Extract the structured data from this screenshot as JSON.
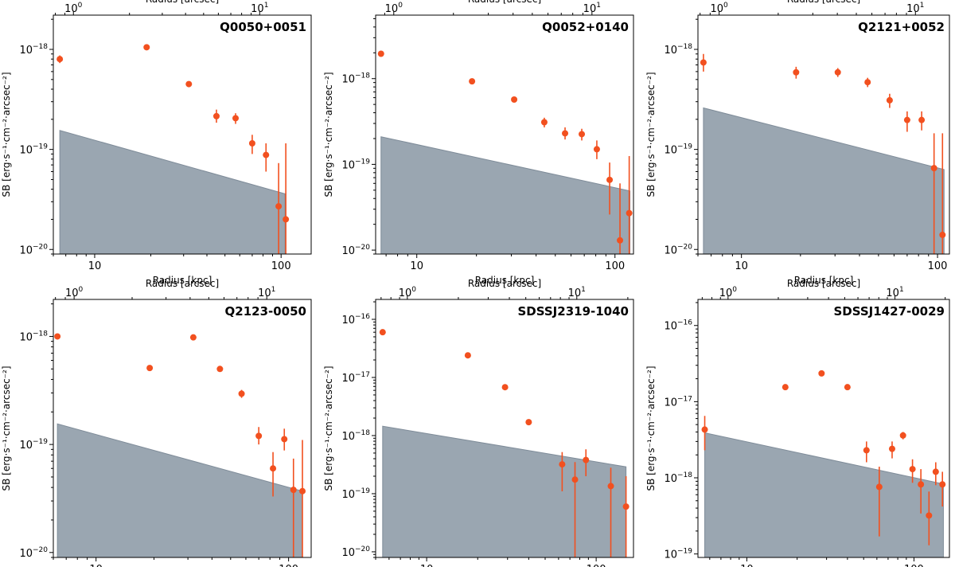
{
  "chart_data": [
    {
      "type": "scatter",
      "title": "Q0050+0051",
      "xlabel": "Radius [kpc]",
      "x2label": "Radius [arcsec]",
      "ylabel": "SB [erg·s⁻¹·cm⁻²·arcsec⁻²]",
      "xscale": "log",
      "yscale": "log",
      "xlim": [
        6,
        145
      ],
      "ylim": [
        9e-21,
        2.2e-18
      ],
      "x2lim": [
        0.78,
        18.9
      ],
      "xticks": [
        {
          "v": 10,
          "label": "10"
        },
        {
          "v": 100,
          "label": "100"
        }
      ],
      "x2ticks": [
        {
          "v": 1,
          "base": "10",
          "exp": "0"
        },
        {
          "v": 10,
          "base": "10",
          "exp": "1"
        }
      ],
      "yticks": [
        {
          "v": 1e-20,
          "base": "10",
          "exp": "−20"
        },
        {
          "v": 1e-19,
          "base": "10",
          "exp": "−19"
        },
        {
          "v": 1e-18,
          "base": "10",
          "exp": "−18"
        }
      ],
      "marker_color": "#f2501f",
      "band_color": "#9aa6b1",
      "band": {
        "x": [
          6.5,
          105
        ],
        "y_top": [
          1.55e-19,
          3.6e-20
        ]
      },
      "points": [
        {
          "x": 6.5,
          "y": 8e-19,
          "lo": 7.3e-19,
          "hi": 8.7e-19
        },
        {
          "x": 19,
          "y": 1.05e-18,
          "lo": 1e-18,
          "hi": 1.1e-18
        },
        {
          "x": 32,
          "y": 4.5e-19,
          "lo": 4.3e-19,
          "hi": 4.7e-19
        },
        {
          "x": 45,
          "y": 2.15e-19,
          "lo": 1.85e-19,
          "hi": 2.5e-19
        },
        {
          "x": 57,
          "y": 2.05e-19,
          "lo": 1.8e-19,
          "hi": 2.3e-19
        },
        {
          "x": 70,
          "y": 1.15e-19,
          "lo": 9e-20,
          "hi": 1.4e-19
        },
        {
          "x": 83,
          "y": 8.8e-20,
          "lo": 6e-20,
          "hi": 1.15e-19
        },
        {
          "x": 97,
          "y": 2.7e-20,
          "lo": 9e-21,
          "hi": 7.3e-20
        },
        {
          "x": 106,
          "y": 2e-20,
          "lo": 9e-21,
          "hi": 1.15e-19
        }
      ]
    },
    {
      "type": "scatter",
      "title": "Q0052+0140",
      "xlabel": "Radius [kpc]",
      "x2label": "Radius [arcsec]",
      "ylabel": "SB [erg·s⁻¹·cm⁻²·arcsec⁻²]",
      "xscale": "log",
      "yscale": "log",
      "xlim": [
        6.2,
        124
      ],
      "ylim": [
        9e-21,
        5.5e-18
      ],
      "x2lim": [
        0.81,
        16.2
      ],
      "xticks": [
        {
          "v": 10,
          "label": "10"
        },
        {
          "v": 100,
          "label": "100"
        }
      ],
      "x2ticks": [
        {
          "v": 1,
          "base": "10",
          "exp": "0"
        },
        {
          "v": 10,
          "base": "10",
          "exp": "1"
        }
      ],
      "yticks": [
        {
          "v": 1e-20,
          "base": "10",
          "exp": "−20"
        },
        {
          "v": 1e-19,
          "base": "10",
          "exp": "−19"
        },
        {
          "v": 1e-18,
          "base": "10",
          "exp": "−18"
        }
      ],
      "marker_color": "#f2501f",
      "band_color": "#9aa6b1",
      "band": {
        "x": [
          6.6,
          119
        ],
        "y_top": [
          2.1e-19,
          4.9e-20
        ]
      },
      "points": [
        {
          "x": 6.6,
          "y": 1.95e-18,
          "lo": 1.85e-18,
          "hi": 2.05e-18
        },
        {
          "x": 19,
          "y": 9.3e-19,
          "lo": 8.9e-19,
          "hi": 9.7e-19
        },
        {
          "x": 31,
          "y": 5.7e-19,
          "lo": 5.4e-19,
          "hi": 6e-19
        },
        {
          "x": 44,
          "y": 3.1e-19,
          "lo": 2.7e-19,
          "hi": 3.5e-19
        },
        {
          "x": 56,
          "y": 2.3e-19,
          "lo": 1.95e-19,
          "hi": 2.7e-19
        },
        {
          "x": 68,
          "y": 2.25e-19,
          "lo": 1.9e-19,
          "hi": 2.6e-19
        },
        {
          "x": 81,
          "y": 1.5e-19,
          "lo": 1.15e-19,
          "hi": 1.9e-19
        },
        {
          "x": 94,
          "y": 6.6e-20,
          "lo": 2.6e-20,
          "hi": 1.05e-19
        },
        {
          "x": 106,
          "y": 1.3e-20,
          "lo": 9e-21,
          "hi": 6e-20
        },
        {
          "x": 118,
          "y": 2.7e-20,
          "lo": 9e-21,
          "hi": 1.25e-19
        }
      ]
    },
    {
      "type": "scatter",
      "title": "Q2121+0052",
      "xlabel": "Radius [kpc]",
      "x2label": "Radius [arcsec]",
      "ylabel": "SB [erg·s⁻¹·cm⁻²·arcsec⁻²]",
      "xscale": "log",
      "yscale": "log",
      "xlim": [
        6.0,
        115
      ],
      "ylim": [
        9e-21,
        2.2e-18
      ],
      "x2lim": [
        0.78,
        14.9
      ],
      "xticks": [
        {
          "v": 10,
          "label": "10"
        },
        {
          "v": 100,
          "label": "100"
        }
      ],
      "x2ticks": [
        {
          "v": 1,
          "base": "10",
          "exp": "0"
        },
        {
          "v": 10,
          "base": "10",
          "exp": "1"
        }
      ],
      "yticks": [
        {
          "v": 1e-20,
          "base": "10",
          "exp": "−20"
        },
        {
          "v": 1e-19,
          "base": "10",
          "exp": "−19"
        },
        {
          "v": 1e-18,
          "base": "10",
          "exp": "−18"
        }
      ],
      "marker_color": "#f2501f",
      "band_color": "#9aa6b1",
      "band": {
        "x": [
          6.4,
          108
        ],
        "y_top": [
          2.6e-19,
          6.3e-20
        ]
      },
      "points": [
        {
          "x": 6.4,
          "y": 7.4e-19,
          "lo": 6e-19,
          "hi": 9e-19
        },
        {
          "x": 19,
          "y": 5.9e-19,
          "lo": 5.1e-19,
          "hi": 6.7e-19
        },
        {
          "x": 31,
          "y": 5.9e-19,
          "lo": 5.3e-19,
          "hi": 6.5e-19
        },
        {
          "x": 44,
          "y": 4.7e-19,
          "lo": 4.2e-19,
          "hi": 5.2e-19
        },
        {
          "x": 57,
          "y": 3.1e-19,
          "lo": 2.6e-19,
          "hi": 3.6e-19
        },
        {
          "x": 70,
          "y": 1.97e-19,
          "lo": 1.5e-19,
          "hi": 2.4e-19
        },
        {
          "x": 83,
          "y": 1.97e-19,
          "lo": 1.55e-19,
          "hi": 2.4e-19
        },
        {
          "x": 96,
          "y": 6.5e-20,
          "lo": 9e-21,
          "hi": 1.45e-19
        },
        {
          "x": 106,
          "y": 1.4e-20,
          "lo": 9e-21,
          "hi": 1.45e-19
        }
      ]
    },
    {
      "type": "scatter",
      "title": "Q2123-0050",
      "xlabel": "Radius [kpc]",
      "x2label": "Radius [arcsec]",
      "ylabel": "SB [erg·s⁻¹·cm⁻²·arcsec⁻²]",
      "xscale": "log",
      "yscale": "log",
      "xlim": [
        6.0,
        131
      ],
      "ylim": [
        9e-21,
        2.2e-18
      ],
      "x2lim": [
        0.78,
        17.0
      ],
      "xticks": [
        {
          "v": 10,
          "label": "10"
        },
        {
          "v": 100,
          "label": "100"
        }
      ],
      "x2ticks": [
        {
          "v": 1,
          "base": "10",
          "exp": "0"
        },
        {
          "v": 10,
          "base": "10",
          "exp": "1"
        }
      ],
      "yticks": [
        {
          "v": 1e-20,
          "base": "10",
          "exp": "−20"
        },
        {
          "v": 1e-19,
          "base": "10",
          "exp": "−19"
        },
        {
          "v": 1e-18,
          "base": "10",
          "exp": "−18"
        }
      ],
      "marker_color": "#f2501f",
      "band_color": "#9aa6b1",
      "band": {
        "x": [
          6.3,
          118
        ],
        "y_top": [
          1.55e-19,
          3.7e-20
        ]
      },
      "points": [
        {
          "x": 6.3,
          "y": 1e-18,
          "lo": 9.6e-19,
          "hi": 1.04e-18
        },
        {
          "x": 19,
          "y": 5.1e-19,
          "lo": 4.8e-19,
          "hi": 5.4e-19
        },
        {
          "x": 32,
          "y": 9.8e-19,
          "lo": 9.4e-19,
          "hi": 1.02e-18
        },
        {
          "x": 44,
          "y": 5e-19,
          "lo": 4.7e-19,
          "hi": 5.3e-19
        },
        {
          "x": 57,
          "y": 2.95e-19,
          "lo": 2.7e-19,
          "hi": 3.2e-19
        },
        {
          "x": 70,
          "y": 1.2e-19,
          "lo": 1e-19,
          "hi": 1.45e-19
        },
        {
          "x": 83,
          "y": 6e-20,
          "lo": 3.3e-20,
          "hi": 8.5e-20
        },
        {
          "x": 95,
          "y": 1.12e-19,
          "lo": 8.8e-20,
          "hi": 1.4e-19
        },
        {
          "x": 106,
          "y": 3.8e-20,
          "lo": 9e-21,
          "hi": 7.4e-20
        },
        {
          "x": 118,
          "y": 3.7e-20,
          "lo": 9e-21,
          "hi": 1.1e-19
        }
      ]
    },
    {
      "type": "scatter",
      "title": "SDSSJ2319-1040",
      "xlabel": "Radius [kpc]",
      "x2label": "Radius [arcsec]",
      "ylabel": "SB [erg·s⁻¹·cm⁻²·arcsec⁻²]",
      "xscale": "log",
      "yscale": "log",
      "xlim": [
        5.0,
        166
      ],
      "ylim": [
        8e-21,
        2.2e-16
      ],
      "x2lim": [
        0.65,
        21.6
      ],
      "xticks": [
        {
          "v": 10,
          "label": "10"
        },
        {
          "v": 100,
          "label": "100"
        }
      ],
      "x2ticks": [
        {
          "v": 1,
          "base": "10",
          "exp": "0"
        },
        {
          "v": 10,
          "base": "10",
          "exp": "1"
        }
      ],
      "yticks": [
        {
          "v": 1e-20,
          "base": "10",
          "exp": "−20"
        },
        {
          "v": 1e-19,
          "base": "10",
          "exp": "−19"
        },
        {
          "v": 1e-18,
          "base": "10",
          "exp": "−18"
        },
        {
          "v": 1e-17,
          "base": "10",
          "exp": "−17"
        },
        {
          "v": 1e-16,
          "base": "10",
          "exp": "−16"
        }
      ],
      "marker_color": "#f2501f",
      "band_color": "#9aa6b1",
      "band": {
        "x": [
          5.5,
          150
        ],
        "y_top": [
          1.45e-18,
          2.9e-19
        ]
      },
      "points": [
        {
          "x": 5.5,
          "y": 6e-17,
          "lo": 5.5e-17,
          "hi": 6.5e-17
        },
        {
          "x": 17.5,
          "y": 2.4e-17,
          "lo": 2.2e-17,
          "hi": 2.6e-17
        },
        {
          "x": 29,
          "y": 6.8e-18,
          "lo": 6.2e-18,
          "hi": 7.4e-18
        },
        {
          "x": 40,
          "y": 1.7e-18,
          "lo": 1.55e-18,
          "hi": 1.85e-18
        },
        {
          "x": 63,
          "y": 3.2e-19,
          "lo": 1.1e-19,
          "hi": 5.2e-19
        },
        {
          "x": 75,
          "y": 1.75e-19,
          "lo": 8e-21,
          "hi": 3.5e-19
        },
        {
          "x": 87,
          "y": 3.8e-19,
          "lo": 2e-19,
          "hi": 5.8e-19
        },
        {
          "x": 122,
          "y": 1.35e-19,
          "lo": 8e-21,
          "hi": 2.8e-19
        },
        {
          "x": 150,
          "y": 6e-20,
          "lo": 8e-21,
          "hi": 2e-19
        }
      ]
    },
    {
      "type": "scatter",
      "title": "SDSSJ1427-0029",
      "xlabel": "Radius [kpc]",
      "x2label": "Radius [arcsec]",
      "ylabel": "SB [erg·s⁻¹·cm⁻²·arcsec⁻²]",
      "xscale": "log",
      "yscale": "log",
      "xlim": [
        5.1,
        163
      ],
      "ylim": [
        9e-20,
        2.2e-16
      ],
      "x2lim": [
        0.66,
        21.2
      ],
      "xticks": [
        {
          "v": 10,
          "label": "10"
        },
        {
          "v": 100,
          "label": "100"
        }
      ],
      "x2ticks": [
        {
          "v": 1,
          "base": "10",
          "exp": "0"
        },
        {
          "v": 10,
          "base": "10",
          "exp": "1"
        }
      ],
      "yticks": [
        {
          "v": 1e-19,
          "base": "10",
          "exp": "−19"
        },
        {
          "v": 1e-18,
          "base": "10",
          "exp": "−18"
        },
        {
          "v": 1e-17,
          "base": "10",
          "exp": "−17"
        },
        {
          "v": 1e-16,
          "base": "10",
          "exp": "−16"
        }
      ],
      "marker_color": "#f2501f",
      "band_color": "#9aa6b1",
      "band": {
        "x": [
          5.6,
          150
        ],
        "y_top": [
          3.9e-18,
          8.3e-19
        ]
      },
      "points": [
        {
          "x": 5.6,
          "y": 4.3e-18,
          "lo": 2.3e-18,
          "hi": 6.5e-18
        },
        {
          "x": 17,
          "y": 1.55e-17,
          "lo": 1.45e-17,
          "hi": 1.65e-17
        },
        {
          "x": 28,
          "y": 2.35e-17,
          "lo": 2.2e-17,
          "hi": 2.5e-17
        },
        {
          "x": 40,
          "y": 1.55e-17,
          "lo": 1.45e-17,
          "hi": 1.65e-17
        },
        {
          "x": 52,
          "y": 2.3e-18,
          "lo": 1.6e-18,
          "hi": 3e-18
        },
        {
          "x": 62,
          "y": 7.6e-19,
          "lo": 1.7e-19,
          "hi": 1.4e-18
        },
        {
          "x": 74,
          "y": 2.4e-18,
          "lo": 1.8e-18,
          "hi": 3e-18
        },
        {
          "x": 86,
          "y": 3.6e-18,
          "lo": 3.2e-18,
          "hi": 4e-18
        },
        {
          "x": 98,
          "y": 1.3e-18,
          "lo": 8.6e-19,
          "hi": 1.75e-18
        },
        {
          "x": 110,
          "y": 8.2e-19,
          "lo": 3.4e-19,
          "hi": 1.3e-18
        },
        {
          "x": 123,
          "y": 3.2e-19,
          "lo": 1.3e-19,
          "hi": 6.6e-19
        },
        {
          "x": 135,
          "y": 1.2e-18,
          "lo": 8e-19,
          "hi": 1.6e-18
        },
        {
          "x": 148,
          "y": 8.2e-19,
          "lo": 4.2e-19,
          "hi": 1.2e-18
        }
      ]
    }
  ]
}
